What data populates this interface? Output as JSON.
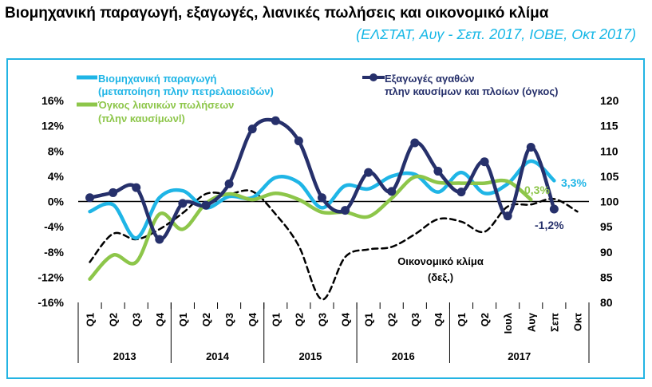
{
  "header": {
    "title": "Βιομηχανική παραγωγή, εξαγωγές, λιανικές πωλήσεις και οικονομικό κλίμα",
    "subtitle": "(ΕΛΣΤΑΤ, Αυγ - Σεπ. 2017, ΙΟΒΕ, Οκτ 2017)"
  },
  "colors": {
    "industrial": "#1fb5e6",
    "exports": "#26306b",
    "retail": "#8dc64a",
    "climate": "#000000",
    "frame": "#23b4e3"
  },
  "legend": {
    "industrial_l1": "Βιομηχανική παραγωγή",
    "industrial_l2": "(μεταποίηση πλην πετρελαιοειδών)",
    "exports_l1": "Εξαγωγές αγαθών",
    "exports_l2": "πλην καυσίμων και πλοίων (όγκος)",
    "retail_l1": "Όγκος λιανικών πωλήσεων",
    "retail_l2": "(πλην καυσίμωνl)",
    "climate_l1": "Οικονομικό κλίμα",
    "climate_l2": "(δεξ.)"
  },
  "chart_data": {
    "type": "line",
    "categories": [
      "Q1",
      "Q2",
      "Q3",
      "Q4",
      "Q1",
      "Q2",
      "Q3",
      "Q4",
      "Q1",
      "Q2",
      "Q3",
      "Q4",
      "Q1",
      "Q2",
      "Q3",
      "Q4",
      "Q1",
      "Q2",
      "Ιουλ",
      "Αυγ",
      "Σεπ",
      "Οκτ"
    ],
    "year_groups": [
      {
        "label": "2013",
        "start": 0,
        "end": 3
      },
      {
        "label": "2014",
        "start": 4,
        "end": 7
      },
      {
        "label": "2015",
        "start": 8,
        "end": 11
      },
      {
        "label": "2016",
        "start": 12,
        "end": 15
      },
      {
        "label": "2017",
        "start": 16,
        "end": 21
      }
    ],
    "y_left": {
      "min": -16,
      "max": 16,
      "ticks": [
        -16,
        -12,
        -8,
        -4,
        0,
        4,
        8,
        12,
        16
      ],
      "format": "percent"
    },
    "y_right": {
      "min": 80,
      "max": 120,
      "ticks": [
        80,
        85,
        90,
        95,
        100,
        105,
        110,
        115,
        120
      ]
    },
    "series": [
      {
        "key": "industrial",
        "axis": "left",
        "style": "smooth-solid",
        "values": [
          -1.6,
          -0.5,
          -5.8,
          0.6,
          1.7,
          -1.0,
          0.8,
          0.6,
          3.8,
          3.0,
          -1.0,
          2.5,
          2.0,
          4.0,
          4.3,
          1.5,
          4.6,
          1.3,
          2.8,
          6.4,
          3.3,
          null
        ]
      },
      {
        "key": "exports",
        "axis": "left",
        "style": "markers",
        "values": [
          0.6,
          1.4,
          2.2,
          -6.0,
          -0.3,
          -0.6,
          2.8,
          11.5,
          12.8,
          9.6,
          0.6,
          -1.4,
          4.6,
          1.6,
          9.3,
          4.8,
          1.5,
          6.3,
          -2.3,
          8.6,
          -1.2,
          null
        ]
      },
      {
        "key": "retail",
        "axis": "left",
        "style": "smooth-solid",
        "values": [
          -12.3,
          -8.5,
          -9.6,
          -2.0,
          -4.4,
          -0.3,
          1.2,
          0.3,
          1.3,
          0.3,
          -1.7,
          -1.7,
          -2.4,
          0.5,
          3.9,
          3.0,
          2.9,
          2.9,
          3.2,
          0.3,
          null,
          null
        ]
      },
      {
        "key": "climate",
        "axis": "right",
        "style": "dashed",
        "values": [
          88.0,
          93.6,
          92.5,
          94.5,
          97.7,
          101.5,
          101.5,
          102.0,
          97.5,
          91.2,
          80.6,
          89.0,
          90.5,
          91.0,
          93.5,
          96.5,
          96.0,
          94.0,
          99.0,
          99.4,
          100.5,
          98.0
        ]
      }
    ],
    "value_labels": {
      "industrial": "3,3%",
      "retail": "0,3%",
      "exports": "-1,2%"
    },
    "grid": false,
    "legend_position": "top"
  }
}
